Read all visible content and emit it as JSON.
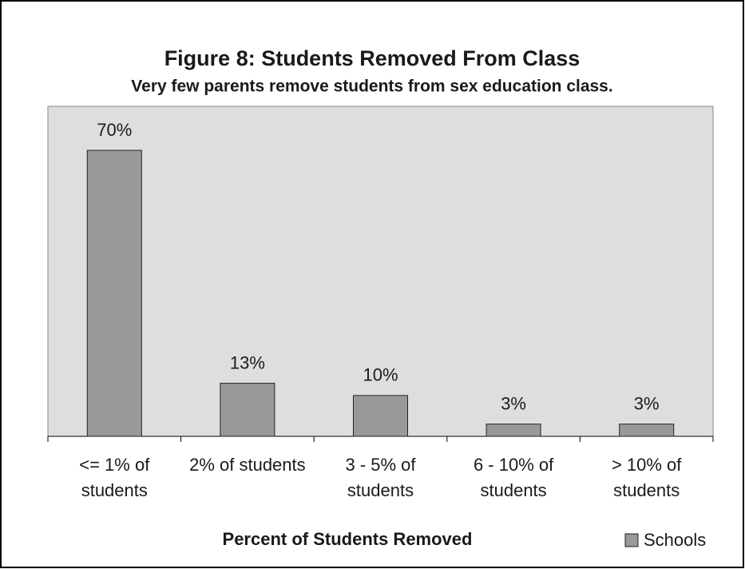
{
  "chart_data": {
    "type": "bar",
    "title": "Figure 8: Students Removed From Class",
    "subtitle": "Very few parents remove students from sex education class.",
    "x_label": "Percent of Students Removed",
    "categories": [
      "<= 1% of students",
      "2% of students",
      "3 - 5% of students",
      "6 - 10% of students",
      "> 10% of students"
    ],
    "series": [
      {
        "name": "Schools",
        "color": "#999999",
        "values": [
          70,
          13,
          10,
          3,
          3
        ],
        "value_labels": [
          "70%",
          "13%",
          "10%",
          "3%",
          "3%"
        ]
      }
    ],
    "ylim": [
      0,
      80
    ],
    "legend": "bottom-right"
  }
}
